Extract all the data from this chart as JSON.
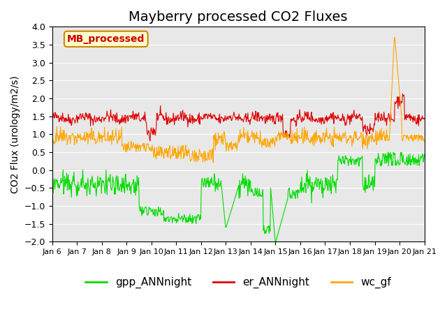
{
  "title": "Mayberry processed CO2 Fluxes",
  "ylabel": "CO2 Flux (urology/m2/s)",
  "ylim": [
    -2.0,
    4.0
  ],
  "yticks": [
    -2.0,
    -1.5,
    -1.0,
    -0.5,
    0.0,
    0.5,
    1.0,
    1.5,
    2.0,
    2.5,
    3.0,
    3.5,
    4.0
  ],
  "xtick_labels": [
    "Jan 6",
    "Jan 7",
    "Jan 8",
    "Jan 9",
    "Jan 10",
    "Jan 11",
    "Jan 12",
    "Jan 13",
    "Jan 14",
    "Jan 15",
    "Jan 16",
    "Jan 17",
    "Jan 18",
    "Jan 19",
    "Jan 20",
    "Jan 21"
  ],
  "n_days": 15,
  "color_gpp": "#00dd00",
  "color_er": "#dd0000",
  "color_wc": "#ffa500",
  "label_gpp": "gpp_ANNnight",
  "label_er": "er_ANNnight",
  "label_wc": "wc_gf",
  "watermark_text": "MB_processed",
  "watermark_color": "#cc0000",
  "watermark_bg": "#ffffcc",
  "watermark_border": "#cc8800",
  "bg_color": "#e8e8e8",
  "title_fontsize": 14,
  "legend_fontsize": 11,
  "axis_fontsize": 10
}
